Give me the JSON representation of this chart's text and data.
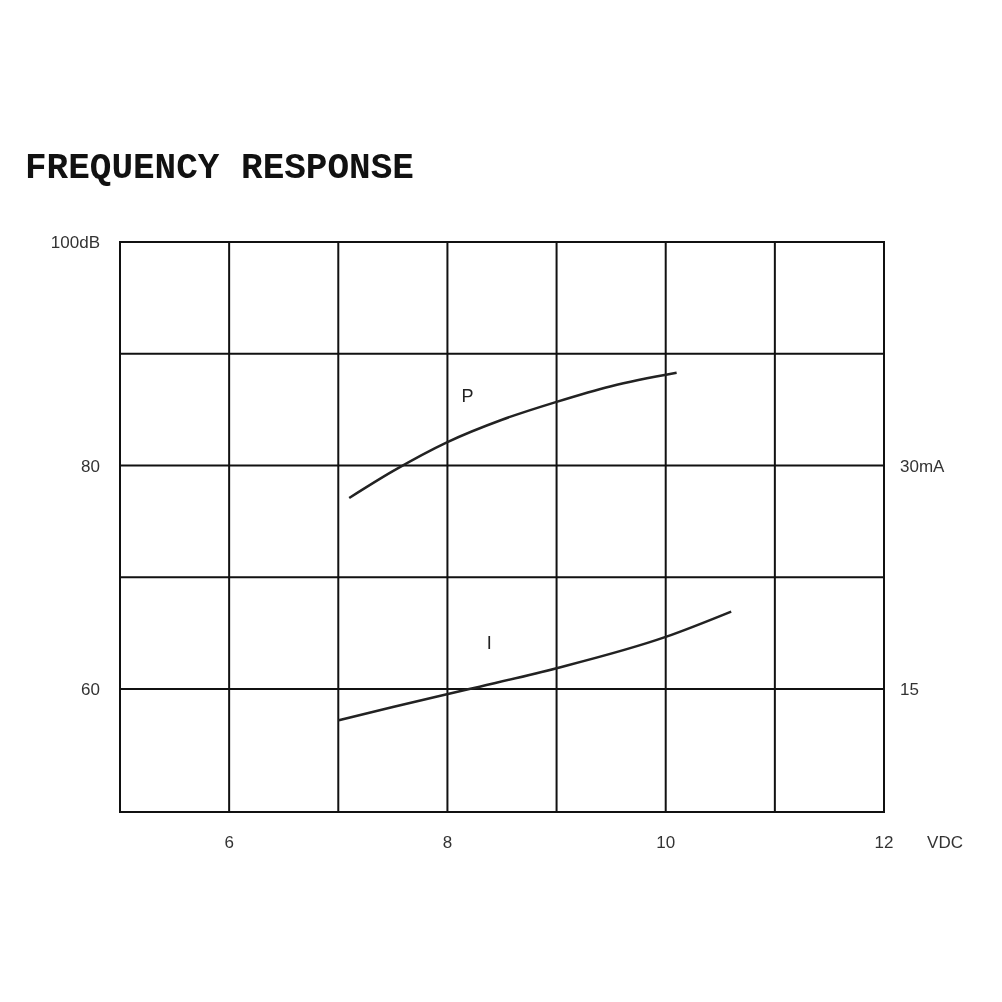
{
  "chart_data": {
    "type": "line",
    "title": "FREQUENCY RESPONSE",
    "xlabel": "VDC",
    "xlim": [
      5,
      12
    ],
    "xticks": [
      {
        "value": 6,
        "label": "6"
      },
      {
        "value": 7,
        "label": null
      },
      8,
      {
        "value": 9,
        "label": null
      },
      10,
      {
        "value": 11,
        "label": null
      },
      12
    ],
    "ylim": [
      49,
      100
    ],
    "yticks": [
      {
        "value": 100,
        "label": "100dB"
      },
      {
        "value": 90,
        "label": null
      },
      80,
      {
        "value": 70,
        "label": null
      },
      60
    ],
    "y2lim": [
      6.75,
      45
    ],
    "y2ticks": [
      {
        "value": 30,
        "label": "30mA"
      },
      15
    ],
    "grid": true,
    "marker": "none",
    "line_style": "solid",
    "series": [
      {
        "name": "P",
        "color": "#222222",
        "x": [
          7.1,
          7.5,
          8,
          8.5,
          9,
          9.5,
          10.1
        ],
        "values": [
          77.1,
          79.5,
          82.1,
          84.1,
          85.7,
          87.1,
          88.3
        ]
      },
      {
        "name": "I",
        "color": "#222222",
        "axis": "y2",
        "x": [
          7,
          7.5,
          8.2,
          9,
          10,
          10.6
        ],
        "values": [
          12.9,
          13.8,
          15.0,
          16.4,
          18.5,
          20.2
        ]
      }
    ]
  }
}
